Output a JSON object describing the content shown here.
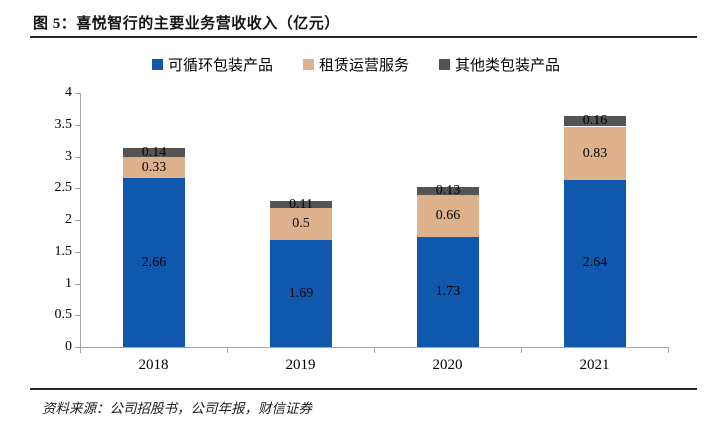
{
  "header": {
    "title": "图 5：喜悦智行的主要业务营收收入（亿元）"
  },
  "footer": {
    "source": "资料来源：公司招股书，公司年报，财信证券"
  },
  "colors": {
    "axis": "#A6A6A6",
    "rule": "#262626",
    "series_blue": "#1057AE",
    "series_tan": "#DDB18C",
    "series_gray": "#545454"
  },
  "chart_data": {
    "type": "bar",
    "stacked": true,
    "title": "喜悦智行的主要业务营收收入（亿元）",
    "categories": [
      "2018",
      "2019",
      "2020",
      "2021"
    ],
    "series": [
      {
        "name": "可循环包装产品",
        "color": "#1057AE",
        "values": [
          2.66,
          1.69,
          1.73,
          2.64
        ],
        "labels": [
          "2.66",
          "1.69",
          "1.73",
          "2.64"
        ]
      },
      {
        "name": "租赁运营服务",
        "color": "#DDB18C",
        "values": [
          0.33,
          0.5,
          0.66,
          0.83
        ],
        "labels": [
          "0.33",
          "0.5",
          "0.66",
          "0.83"
        ]
      },
      {
        "name": "其他类包装产品",
        "color": "#545454",
        "values": [
          0.14,
          0.11,
          0.13,
          0.16
        ],
        "labels": [
          "0.14",
          "0.11",
          "0.13",
          "0.16"
        ]
      }
    ],
    "xlabel": "",
    "ylabel": "",
    "ylim": [
      0,
      4
    ],
    "y_tick_step": 0.5,
    "y_ticks": [
      "0",
      "0.5",
      "1",
      "1.5",
      "2",
      "2.5",
      "3",
      "3.5",
      "4"
    ],
    "grid": false,
    "legend_position": "top"
  }
}
